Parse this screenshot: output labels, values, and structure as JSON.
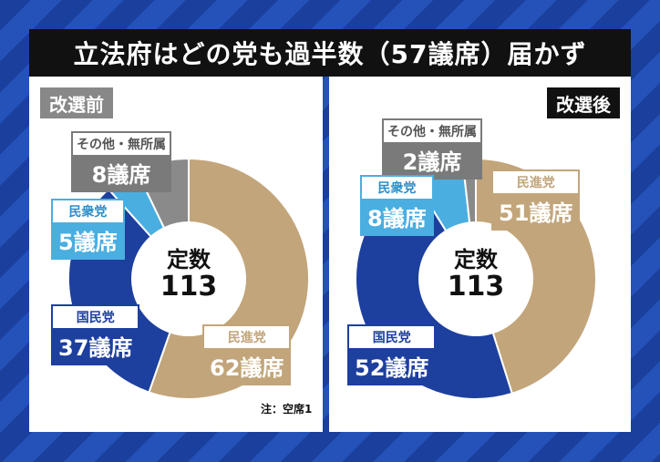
{
  "title": "立法府はどの党も過半数（57議席）届かず",
  "chart_data": [
    {
      "type": "pie",
      "title": "改選前",
      "center": {
        "line1": "定数",
        "line2": "113"
      },
      "slices": [
        {
          "name": "民進党",
          "value": 62,
          "label": "62議席",
          "color": "#c2a57a",
          "label_bg": "#c2a57a",
          "label_text": "#c2a57a"
        },
        {
          "name": "国民党",
          "value": 37,
          "label": "37議席",
          "color": "#1d3f9e",
          "label_bg": "#1d3f9e",
          "label_text": "#1d3f9e"
        },
        {
          "name": "民衆党",
          "value": 5,
          "label": "5議席",
          "color": "#4aaee0",
          "label_bg": "#4aaee0",
          "label_text": "#2b8fc8"
        },
        {
          "name": "その他・無所属",
          "value": 8,
          "label": "8議席",
          "color": "#8a8a8a",
          "label_bg": "#7a7a7a",
          "label_text": "#555555"
        }
      ],
      "note": "注：空席1"
    },
    {
      "type": "pie",
      "title": "改選後",
      "center": {
        "line1": "定数",
        "line2": "113"
      },
      "slices": [
        {
          "name": "民進党",
          "value": 51,
          "label": "51議席",
          "color": "#c2a57a",
          "label_bg": "#c2a57a",
          "label_text": "#c2a57a"
        },
        {
          "name": "国民党",
          "value": 52,
          "label": "52議席",
          "color": "#1d3f9e",
          "label_bg": "#1d3f9e",
          "label_text": "#1d3f9e"
        },
        {
          "name": "民衆党",
          "value": 8,
          "label": "8議席",
          "color": "#4aaee0",
          "label_bg": "#4aaee0",
          "label_text": "#2b8fc8"
        },
        {
          "name": "その他・無所属",
          "value": 2,
          "label": "2議席",
          "color": "#8a8a8a",
          "label_bg": "#7a7a7a",
          "label_text": "#555555"
        }
      ]
    }
  ]
}
